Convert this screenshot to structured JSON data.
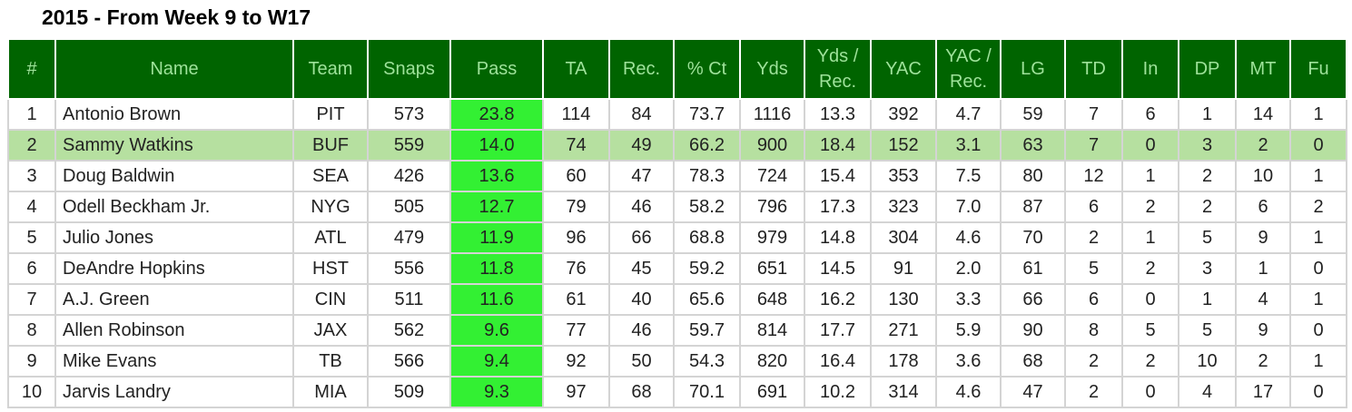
{
  "title": "2015 - From Week 9 to W17",
  "table": {
    "header": [
      "#",
      "Name",
      "Team",
      "Snaps",
      "Pass",
      "TA",
      "Rec.",
      "% Ct",
      "Yds",
      "Yds / Rec.",
      "YAC",
      "YAC / Rec.",
      "LG",
      "TD",
      "In",
      "DP",
      "MT",
      "Fu"
    ],
    "rows": [
      [
        "1",
        "Antonio Brown",
        "PIT",
        "573",
        "23.8",
        "114",
        "84",
        "73.7",
        "1116",
        "13.3",
        "392",
        "4.7",
        "59",
        "7",
        "6",
        "1",
        "14",
        "1"
      ],
      [
        "2",
        "Sammy Watkins",
        "BUF",
        "559",
        "14.0",
        "74",
        "49",
        "66.2",
        "900",
        "18.4",
        "152",
        "3.1",
        "63",
        "7",
        "0",
        "3",
        "2",
        "0"
      ],
      [
        "3",
        "Doug Baldwin",
        "SEA",
        "426",
        "13.6",
        "60",
        "47",
        "78.3",
        "724",
        "15.4",
        "353",
        "7.5",
        "80",
        "12",
        "1",
        "2",
        "10",
        "1"
      ],
      [
        "4",
        "Odell Beckham Jr.",
        "NYG",
        "505",
        "12.7",
        "79",
        "46",
        "58.2",
        "796",
        "17.3",
        "323",
        "7.0",
        "87",
        "6",
        "2",
        "2",
        "6",
        "2"
      ],
      [
        "5",
        "Julio Jones",
        "ATL",
        "479",
        "11.9",
        "96",
        "66",
        "68.8",
        "979",
        "14.8",
        "304",
        "4.6",
        "70",
        "2",
        "1",
        "5",
        "9",
        "1"
      ],
      [
        "6",
        "DeAndre Hopkins",
        "HST",
        "556",
        "11.8",
        "76",
        "45",
        "59.2",
        "651",
        "14.5",
        "91",
        "2.0",
        "61",
        "5",
        "2",
        "3",
        "1",
        "0"
      ],
      [
        "7",
        "A.J. Green",
        "CIN",
        "511",
        "11.6",
        "61",
        "40",
        "65.6",
        "648",
        "16.2",
        "130",
        "3.3",
        "66",
        "6",
        "0",
        "1",
        "4",
        "1"
      ],
      [
        "8",
        "Allen Robinson",
        "JAX",
        "562",
        "9.6",
        "77",
        "46",
        "59.7",
        "814",
        "17.7",
        "271",
        "5.9",
        "90",
        "8",
        "5",
        "5",
        "9",
        "0"
      ],
      [
        "9",
        "Mike Evans",
        "TB",
        "566",
        "9.4",
        "92",
        "50",
        "54.3",
        "820",
        "16.4",
        "178",
        "3.6",
        "68",
        "2",
        "2",
        "10",
        "2",
        "1"
      ],
      [
        "10",
        "Jarvis Landry",
        "MIA",
        "509",
        "9.3",
        "97",
        "68",
        "70.1",
        "691",
        "10.2",
        "314",
        "4.6",
        "47",
        "2",
        "0",
        "4",
        "17",
        "0"
      ]
    ]
  }
}
